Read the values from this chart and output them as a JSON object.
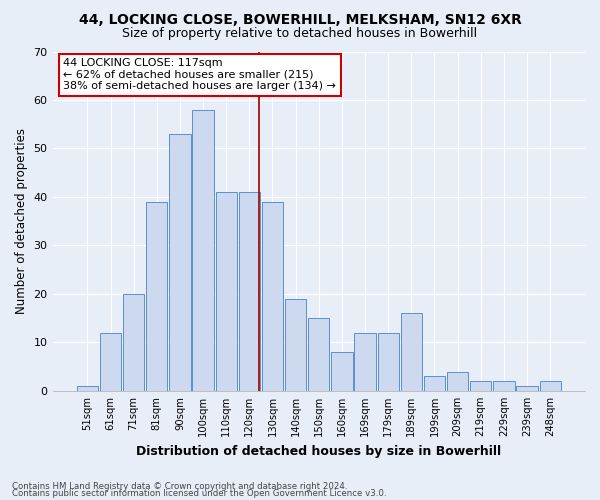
{
  "title1": "44, LOCKING CLOSE, BOWERHILL, MELKSHAM, SN12 6XR",
  "title2": "Size of property relative to detached houses in Bowerhill",
  "xlabel": "Distribution of detached houses by size in Bowerhill",
  "ylabel": "Number of detached properties",
  "categories": [
    "51sqm",
    "61sqm",
    "71sqm",
    "81sqm",
    "90sqm",
    "100sqm",
    "110sqm",
    "120sqm",
    "130sqm",
    "140sqm",
    "150sqm",
    "160sqm",
    "169sqm",
    "179sqm",
    "189sqm",
    "199sqm",
    "209sqm",
    "219sqm",
    "229sqm",
    "239sqm",
    "248sqm"
  ],
  "values": [
    1,
    12,
    20,
    39,
    53,
    58,
    41,
    41,
    39,
    19,
    15,
    8,
    12,
    12,
    16,
    3,
    4,
    2,
    2,
    1,
    2
  ],
  "bar_color": "#ccd9ee",
  "bar_edge_color": "#5b8fcc",
  "marker_color": "#990000",
  "annotation_line1": "44 LOCKING CLOSE: 117sqm",
  "annotation_line2": "← 62% of detached houses are smaller (215)",
  "annotation_line3": "38% of semi-detached houses are larger (134) →",
  "annotation_box_color": "#ffffff",
  "annotation_box_edge": "#cc0000",
  "footnote1": "Contains HM Land Registry data © Crown copyright and database right 2024.",
  "footnote2": "Contains public sector information licensed under the Open Government Licence v3.0.",
  "ylim": [
    0,
    70
  ],
  "yticks": [
    0,
    10,
    20,
    30,
    40,
    50,
    60,
    70
  ],
  "bg_color": "#e8eef8",
  "plot_bg": "#e8eef8",
  "grid_color": "#ffffff",
  "title1_fontsize": 10,
  "title2_fontsize": 9
}
